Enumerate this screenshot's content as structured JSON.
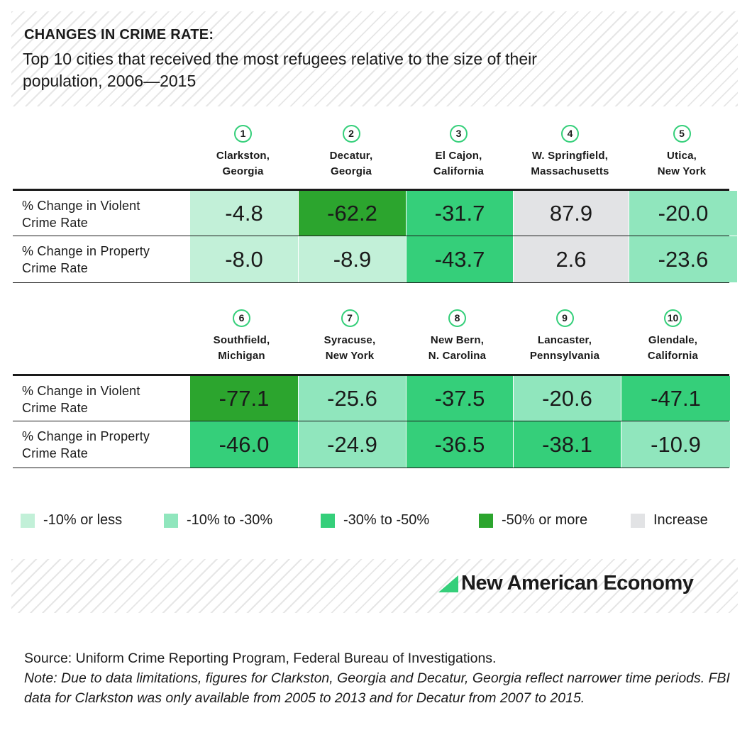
{
  "title": "CHANGES IN CRIME RATE:",
  "subtitle": "Top 10 cities that received the most refugees relative to the size of their population, 2006—2015",
  "colors": {
    "bin_1": "#c2f0d8",
    "bin_2": "#90e6bd",
    "bin_3": "#35cf7a",
    "bin_4": "#2ca52e",
    "increase": "#e2e3e5",
    "accent": "#35cf7a"
  },
  "chart_data": {
    "type": "table",
    "row_labels": [
      "% Change in Violent Crime Rate",
      "% Change in Property Crime Rate"
    ],
    "cities": [
      {
        "rank": "1",
        "line1": "Clarkston,",
        "line2": "Georgia",
        "violent": "-4.8",
        "property": "-8.0"
      },
      {
        "rank": "2",
        "line1": "Decatur,",
        "line2": "Georgia",
        "violent": "-62.2",
        "property": "-8.9"
      },
      {
        "rank": "3",
        "line1": "El Cajon,",
        "line2": "California",
        "violent": "-31.7",
        "property": "-43.7"
      },
      {
        "rank": "4",
        "line1": "W. Springfield,",
        "line2": "Massachusetts",
        "violent": "87.9",
        "property": "2.6"
      },
      {
        "rank": "5",
        "line1": "Utica,",
        "line2": "New York",
        "violent": "-20.0",
        "property": "-23.6"
      },
      {
        "rank": "6",
        "line1": "Southfield,",
        "line2": "Michigan",
        "violent": "-77.1",
        "property": "-46.0"
      },
      {
        "rank": "7",
        "line1": "Syracuse,",
        "line2": "New York",
        "violent": "-25.6",
        "property": "-24.9"
      },
      {
        "rank": "8",
        "line1": "New Bern,",
        "line2": "N. Carolina",
        "violent": "-37.5",
        "property": "-36.5"
      },
      {
        "rank": "9",
        "line1": "Lancaster,",
        "line2": "Pennsylvania",
        "violent": "-20.6",
        "property": "-38.1"
      },
      {
        "rank": "10",
        "line1": "Glendale,",
        "line2": "California",
        "violent": "-47.1",
        "property": "-10.9"
      }
    ],
    "legend": [
      {
        "label": "-10% or less",
        "color": "#c2f0d8"
      },
      {
        "label": "-10% to -30%",
        "color": "#90e6bd"
      },
      {
        "label": "-30% to -50%",
        "color": "#35cf7a"
      },
      {
        "label": "-50% or more",
        "color": "#2ca52e"
      },
      {
        "label": "Increase",
        "color": "#e2e3e5"
      }
    ],
    "legend_placement": "bottom"
  },
  "brand": {
    "name": "New American Economy",
    "logo_icon": "green-triangle-icon"
  },
  "source_text": "Source: Uniform Crime Reporting Program, Federal Bureau of Investigations.",
  "note_text": "Note: Due to data limitations, figures for Clarkston, Georgia and Decatur, Georgia reflect narrower time periods. FBI data for Clarkston was only available from 2005 to 2013 and for Decatur from 2007 to 2015."
}
